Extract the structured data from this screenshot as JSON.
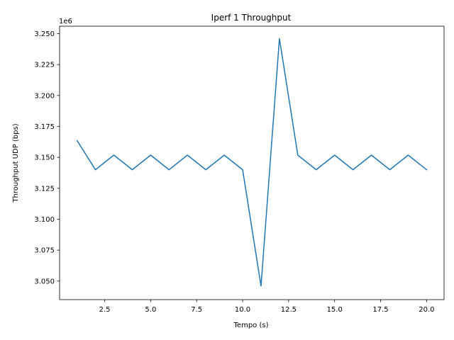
{
  "chart_data": {
    "type": "line",
    "title": "Iperf 1 Throughput",
    "xlabel": "Tempo (s)",
    "ylabel": "Throughput UDP (bps)",
    "y_offset_label": "1e6",
    "xlim": [
      0.05,
      20.95
    ],
    "ylim": [
      3035000,
      3256000
    ],
    "x_ticks": [
      2.5,
      5.0,
      7.5,
      10.0,
      12.5,
      15.0,
      17.5,
      20.0
    ],
    "x_tick_labels": [
      "2.5",
      "5.0",
      "7.5",
      "10.0",
      "12.5",
      "15.0",
      "17.5",
      "20.0"
    ],
    "y_ticks": [
      3050000,
      3075000,
      3100000,
      3125000,
      3150000,
      3175000,
      3200000,
      3225000,
      3250000
    ],
    "y_tick_labels": [
      "3.050",
      "3.075",
      "3.100",
      "3.125",
      "3.150",
      "3.175",
      "3.200",
      "3.225",
      "3.250"
    ],
    "grid": false,
    "series": [
      {
        "color": "#1f77b4",
        "x": [
          1,
          2,
          3,
          4,
          5,
          6,
          7,
          8,
          9,
          10,
          11,
          12,
          13,
          14,
          15,
          16,
          17,
          18,
          19,
          20
        ],
        "values": [
          3163600,
          3140000,
          3151800,
          3140000,
          3151800,
          3140000,
          3151800,
          3140000,
          3151800,
          3140000,
          3046000,
          3246000,
          3151800,
          3140000,
          3151800,
          3140000,
          3151800,
          3140000,
          3151800,
          3140000
        ]
      }
    ]
  }
}
